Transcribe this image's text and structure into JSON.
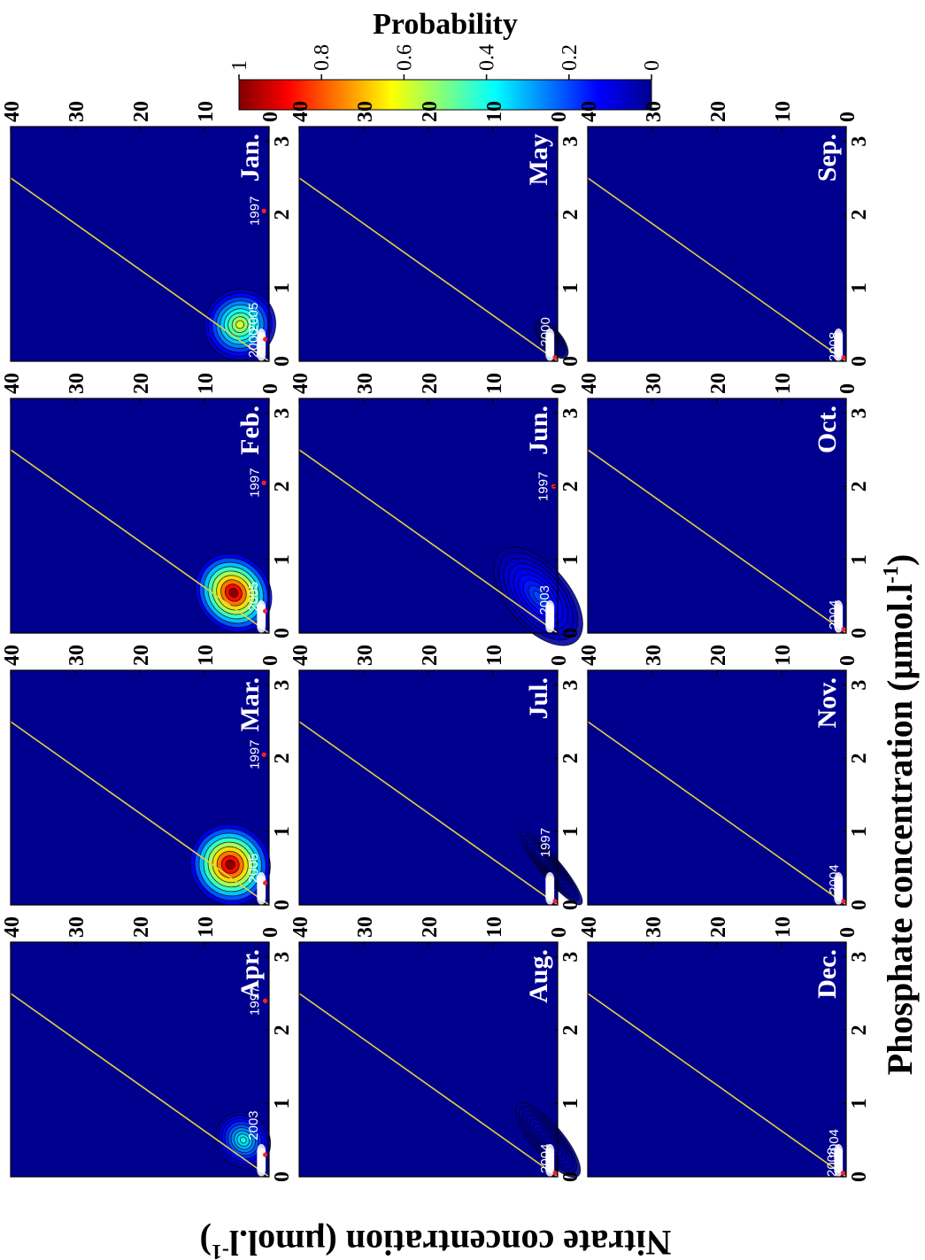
{
  "figure": {
    "colorbar_title": "Probability",
    "xlabel": "Phosphate concentration (µmol.l",
    "xlabel_sup": "-1",
    "xlabel_end": ")",
    "ylabel": "Nitrate concentration (µmol.l",
    "ylabel_sup": "-1",
    "ylabel_end": ")",
    "colors": {
      "background": "#00008f",
      "redfield_line": "#e8d23a",
      "contour": "#000000",
      "point": "#ff2020",
      "year_text": "#ffffff",
      "panel_text": "#ffffff"
    }
  },
  "colorbar": {
    "ticks": [
      "1",
      "0.8",
      "0.6",
      "0.4",
      "0.2",
      "0"
    ],
    "range": [
      0,
      1
    ],
    "colormap": "jet"
  },
  "chart_data": {
    "type": "heatmap",
    "x_range": [
      0,
      3.2
    ],
    "y_range": [
      0,
      40
    ],
    "x_ticks": [
      "0",
      "1",
      "2",
      "3"
    ],
    "y_ticks": [
      "0",
      "10",
      "20",
      "30",
      "40"
    ],
    "redfield_line_slope": 16,
    "panels": [
      {
        "month": "Jan.",
        "peak": 0.6,
        "center": [
          0.5,
          4.5
        ],
        "spread": [
          0.3,
          3.5
        ],
        "labels": [
          {
            "text": "2000",
            "x": 0.25,
            "y": 1.8
          },
          {
            "text": "2005",
            "x": 0.6,
            "y": 1.8
          },
          {
            "text": "1997",
            "x": 2.05,
            "y": 1.6
          }
        ],
        "points": [
          [
            2.05,
            0.8
          ],
          [
            0.3,
            0.6
          ]
        ]
      },
      {
        "month": "Feb.",
        "peak": 1.0,
        "center": [
          0.55,
          5.5
        ],
        "spread": [
          0.35,
          3.5
        ],
        "labels": [
          {
            "text": "2005",
            "x": 0.5,
            "y": 1.8
          },
          {
            "text": "1997",
            "x": 2.05,
            "y": 1.6
          }
        ],
        "points": [
          [
            2.05,
            0.8
          ],
          [
            0.3,
            0.6
          ]
        ]
      },
      {
        "month": "Mar.",
        "peak": 1.0,
        "center": [
          0.55,
          6
        ],
        "spread": [
          0.35,
          3.8
        ],
        "labels": [
          {
            "text": "2005",
            "x": 0.5,
            "y": 1.8
          },
          {
            "text": "1997",
            "x": 2.05,
            "y": 1.6
          }
        ],
        "points": [
          [
            2.05,
            0.8
          ],
          [
            0.3,
            0.6
          ]
        ]
      },
      {
        "month": "Apr.",
        "peak": 0.4,
        "center": [
          0.5,
          4
        ],
        "spread": [
          0.25,
          2.5
        ],
        "labels": [
          {
            "text": "2003",
            "x": 0.7,
            "y": 1.8
          },
          {
            "text": "1997",
            "x": 2.4,
            "y": 1.6
          }
        ],
        "points": [
          [
            2.4,
            0.6
          ],
          [
            0.3,
            0.6
          ]
        ]
      },
      {
        "month": "May",
        "peak": 0.02,
        "center": [
          0.3,
          1
        ],
        "spread": [
          0.2,
          1
        ],
        "labels": [
          {
            "text": "2000",
            "x": 0.4,
            "y": 1.2
          }
        ],
        "points": [
          [
            0.05,
            0.4
          ]
        ]
      },
      {
        "month": "Jun.",
        "peak": 0.2,
        "center": [
          0.5,
          3
        ],
        "spread": [
          0.5,
          3
        ],
        "labels": [
          {
            "text": "2003",
            "x": 0.45,
            "y": 1.4
          },
          {
            "text": "1997",
            "x": 2.0,
            "y": 1.6
          }
        ],
        "points": [
          [
            2.0,
            0.6
          ]
        ]
      },
      {
        "month": "Jul.",
        "peak": 0.01,
        "center": [
          0.5,
          1
        ],
        "spread": [
          0.4,
          1
        ],
        "labels": [
          {
            "text": "1997",
            "x": 0.85,
            "y": 1.2
          }
        ],
        "points": [
          [
            0.05,
            0.4
          ]
        ]
      },
      {
        "month": "Aug.",
        "peak": 0.04,
        "center": [
          0.5,
          1.5
        ],
        "spread": [
          0.4,
          1.5
        ],
        "labels": [
          {
            "text": "2004",
            "x": 0.25,
            "y": 1.2
          }
        ],
        "points": [
          [
            0.05,
            0.4
          ]
        ]
      },
      {
        "month": "Sep.",
        "peak": 0.0,
        "center": [
          0.2,
          1
        ],
        "spread": [
          0.2,
          1
        ],
        "labels": [
          {
            "text": "2008",
            "x": 0.2,
            "y": 1.2
          }
        ],
        "points": [
          [
            0.05,
            0.4
          ]
        ]
      },
      {
        "month": "Oct.",
        "peak": 0.0,
        "center": [
          0.2,
          1
        ],
        "spread": [
          0.2,
          1
        ],
        "labels": [
          {
            "text": "2004",
            "x": 0.25,
            "y": 1.2
          }
        ],
        "points": [
          [
            0.05,
            0.4
          ]
        ]
      },
      {
        "month": "Nov.",
        "peak": 0.0,
        "center": [
          0.2,
          1
        ],
        "spread": [
          0.2,
          1
        ],
        "labels": [
          {
            "text": "2004",
            "x": 0.35,
            "y": 1.2
          }
        ],
        "points": [
          [
            0.05,
            0.4
          ]
        ]
      },
      {
        "month": "Dec.",
        "peak": 0.0,
        "center": [
          0.2,
          1
        ],
        "spread": [
          0.2,
          1
        ],
        "labels": [
          {
            "text": "2008",
            "x": 0.2,
            "y": 1.6
          },
          {
            "text": "2004",
            "x": 0.45,
            "y": 1.2
          }
        ],
        "points": [
          [
            0.05,
            0.5
          ]
        ]
      }
    ]
  }
}
